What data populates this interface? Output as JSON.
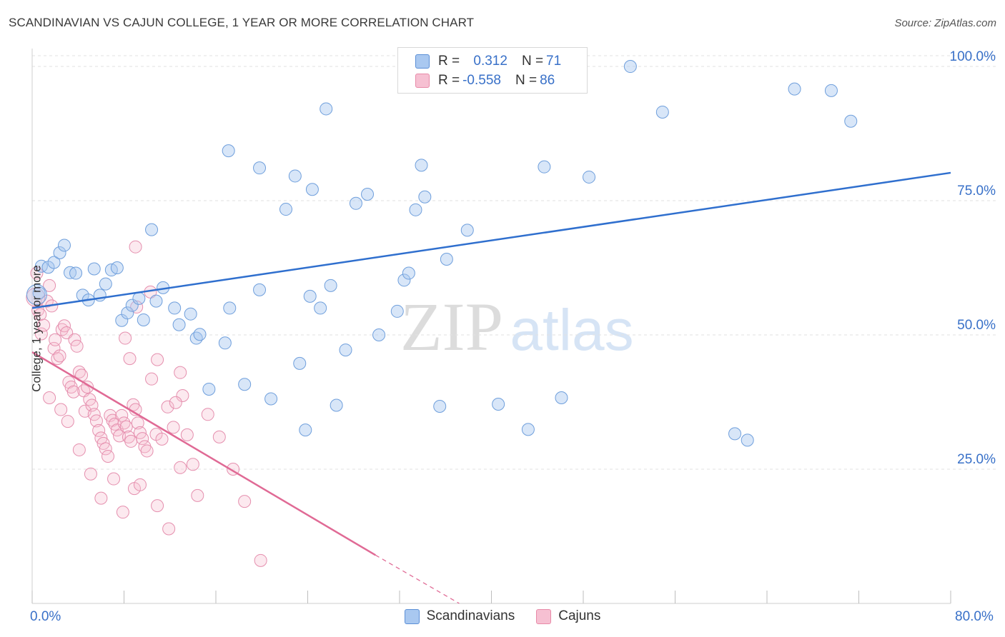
{
  "title": "SCANDINAVIAN VS CAJUN COLLEGE, 1 YEAR OR MORE CORRELATION CHART",
  "source": "Source: ZipAtlas.com",
  "watermark": {
    "zip": "ZIP",
    "atlas": "atlas"
  },
  "legend": {
    "rows": [
      {
        "r_label": "R = ",
        "r_value": " 0.312",
        "n_label": "N = ",
        "n_value": "71",
        "color": "#a9c8f0",
        "border": "#5b8fd6"
      },
      {
        "r_label": "R = ",
        "r_value": "-0.558",
        "n_label": "N = ",
        "n_value": "86",
        "color": "#f6c0d2",
        "border": "#e88aa8"
      }
    ]
  },
  "colors": {
    "blue_fill": "#a9c8f0",
    "blue_stroke": "#6f9fdc",
    "blue_line": "#2f6fce",
    "pink_fill": "#f6c0d2",
    "pink_stroke": "#e58fae",
    "pink_line": "#e06a95",
    "tick_label": "#3870c8"
  },
  "chart_data": {
    "type": "scatter",
    "title": "SCANDINAVIAN VS CAJUN COLLEGE, 1 YEAR OR MORE CORRELATION CHART",
    "xlabel": "",
    "ylabel": "College, 1 year or more",
    "xlim": [
      0,
      80
    ],
    "ylim": [
      0,
      102
    ],
    "x_tick_labels": [
      "0.0%",
      "80.0%"
    ],
    "y_ticks": [
      25,
      50,
      75,
      100
    ],
    "y_tick_labels": [
      "25.0%",
      "50.0%",
      "75.0%",
      "100.0%"
    ],
    "grid": true,
    "series": [
      {
        "name": "Scandinavians",
        "r": 0.312,
        "n": 71,
        "trend": {
          "x": [
            0,
            80
          ],
          "y": [
            55.0,
            80.2
          ]
        },
        "points": [
          [
            0.6,
            57.8
          ],
          [
            0.8,
            62.8
          ],
          [
            1.4,
            62.6
          ],
          [
            1.9,
            63.5
          ],
          [
            2.4,
            65.3
          ],
          [
            2.8,
            66.7
          ],
          [
            3.3,
            61.6
          ],
          [
            3.8,
            61.5
          ],
          [
            4.4,
            57.4
          ],
          [
            4.9,
            56.5
          ],
          [
            5.4,
            62.3
          ],
          [
            5.9,
            57.4
          ],
          [
            6.4,
            59.5
          ],
          [
            6.9,
            62.1
          ],
          [
            7.4,
            62.5
          ],
          [
            7.8,
            52.7
          ],
          [
            8.3,
            54.1
          ],
          [
            8.7,
            55.5
          ],
          [
            9.3,
            56.8
          ],
          [
            9.7,
            52.8
          ],
          [
            10.4,
            69.6
          ],
          [
            10.8,
            56.3
          ],
          [
            11.4,
            58.8
          ],
          [
            12.4,
            55.0
          ],
          [
            12.8,
            51.9
          ],
          [
            13.8,
            53.9
          ],
          [
            14.3,
            49.4
          ],
          [
            14.6,
            50.1
          ],
          [
            15.4,
            39.9
          ],
          [
            16.8,
            48.5
          ],
          [
            17.2,
            55.0
          ],
          [
            18.5,
            40.8
          ],
          [
            19.8,
            58.4
          ],
          [
            20.8,
            38.1
          ],
          [
            22.1,
            73.4
          ],
          [
            23.3,
            44.7
          ],
          [
            23.8,
            32.3
          ],
          [
            24.2,
            57.2
          ],
          [
            25.1,
            55.0
          ],
          [
            26.0,
            59.2
          ],
          [
            26.5,
            36.9
          ],
          [
            27.3,
            47.2
          ],
          [
            28.2,
            74.5
          ],
          [
            30.2,
            50.0
          ],
          [
            31.8,
            54.4
          ],
          [
            32.4,
            60.2
          ],
          [
            32.8,
            61.5
          ],
          [
            33.4,
            73.3
          ],
          [
            33.9,
            81.6
          ],
          [
            34.2,
            75.7
          ],
          [
            35.5,
            36.7
          ],
          [
            36.1,
            64.1
          ],
          [
            37.9,
            69.5
          ],
          [
            40.6,
            37.1
          ],
          [
            43.2,
            32.4
          ],
          [
            44.6,
            81.3
          ],
          [
            46.1,
            38.3
          ],
          [
            48.5,
            79.4
          ],
          [
            52.1,
            100.0
          ],
          [
            54.9,
            91.5
          ],
          [
            61.2,
            31.6
          ],
          [
            62.3,
            30.4
          ],
          [
            66.4,
            95.8
          ],
          [
            69.6,
            95.5
          ],
          [
            71.3,
            89.8
          ],
          [
            17.1,
            84.3
          ],
          [
            19.8,
            81.1
          ],
          [
            22.9,
            79.6
          ],
          [
            24.4,
            77.1
          ],
          [
            25.6,
            92.1
          ],
          [
            29.2,
            76.2
          ]
        ]
      },
      {
        "name": "Cajuns",
        "r": -0.558,
        "n": 86,
        "trend": {
          "x": [
            0,
            29.9
          ],
          "y": [
            46.8,
            9.0
          ]
        },
        "trend_dashed": {
          "x": [
            29.9,
            37.2
          ],
          "y": [
            9.0,
            0
          ]
        },
        "points": [
          [
            0.4,
            61.5
          ],
          [
            0.5,
            54.6
          ],
          [
            0.7,
            53.8
          ],
          [
            0.8,
            50.2
          ],
          [
            1.0,
            51.8
          ],
          [
            1.3,
            56.3
          ],
          [
            1.5,
            59.2
          ],
          [
            1.7,
            55.4
          ],
          [
            1.9,
            47.5
          ],
          [
            2.0,
            49.1
          ],
          [
            2.2,
            45.6
          ],
          [
            2.4,
            46.1
          ],
          [
            2.6,
            51.0
          ],
          [
            2.8,
            51.7
          ],
          [
            3.0,
            50.4
          ],
          [
            3.2,
            41.2
          ],
          [
            3.4,
            40.3
          ],
          [
            3.6,
            39.4
          ],
          [
            3.7,
            49.1
          ],
          [
            3.9,
            47.9
          ],
          [
            4.1,
            43.1
          ],
          [
            4.3,
            42.5
          ],
          [
            4.5,
            39.6
          ],
          [
            4.6,
            35.8
          ],
          [
            4.8,
            40.3
          ],
          [
            5.0,
            38.0
          ],
          [
            5.2,
            36.9
          ],
          [
            5.4,
            35.2
          ],
          [
            5.6,
            34.0
          ],
          [
            5.8,
            32.2
          ],
          [
            6.0,
            30.8
          ],
          [
            6.2,
            29.8
          ],
          [
            6.4,
            28.8
          ],
          [
            6.6,
            27.4
          ],
          [
            6.8,
            35.0
          ],
          [
            7.0,
            34.1
          ],
          [
            7.2,
            33.4
          ],
          [
            7.4,
            32.3
          ],
          [
            7.6,
            31.2
          ],
          [
            7.8,
            35.0
          ],
          [
            8.0,
            33.6
          ],
          [
            8.2,
            32.9
          ],
          [
            8.4,
            31.0
          ],
          [
            8.6,
            30.2
          ],
          [
            8.8,
            37.0
          ],
          [
            9.0,
            36.1
          ],
          [
            9.2,
            33.6
          ],
          [
            9.4,
            31.8
          ],
          [
            9.6,
            30.7
          ],
          [
            9.8,
            29.2
          ],
          [
            10.0,
            28.4
          ],
          [
            10.4,
            41.8
          ],
          [
            10.8,
            31.5
          ],
          [
            11.3,
            30.6
          ],
          [
            11.8,
            36.6
          ],
          [
            12.3,
            32.8
          ],
          [
            12.9,
            25.3
          ],
          [
            13.5,
            31.4
          ],
          [
            14.0,
            25.9
          ],
          [
            15.3,
            35.2
          ],
          [
            16.3,
            31.0
          ],
          [
            17.5,
            25.0
          ],
          [
            18.5,
            19.0
          ],
          [
            19.9,
            8.0
          ],
          [
            1.5,
            38.3
          ],
          [
            2.5,
            36.1
          ],
          [
            3.1,
            33.9
          ],
          [
            4.1,
            28.6
          ],
          [
            5.1,
            24.1
          ],
          [
            6.0,
            19.6
          ],
          [
            7.1,
            23.2
          ],
          [
            7.9,
            17.0
          ],
          [
            8.9,
            21.4
          ],
          [
            9.4,
            22.1
          ],
          [
            10.9,
            18.2
          ],
          [
            11.9,
            13.9
          ],
          [
            14.4,
            20.1
          ],
          [
            9.0,
            66.4
          ],
          [
            10.3,
            58.0
          ],
          [
            8.1,
            49.4
          ],
          [
            8.5,
            45.6
          ],
          [
            10.9,
            45.4
          ],
          [
            9.1,
            55.2
          ],
          [
            12.9,
            43.0
          ],
          [
            13.1,
            38.7
          ],
          [
            12.5,
            37.4
          ]
        ]
      }
    ]
  },
  "bottom_legend": [
    "Scandinavians",
    "Cajuns"
  ]
}
